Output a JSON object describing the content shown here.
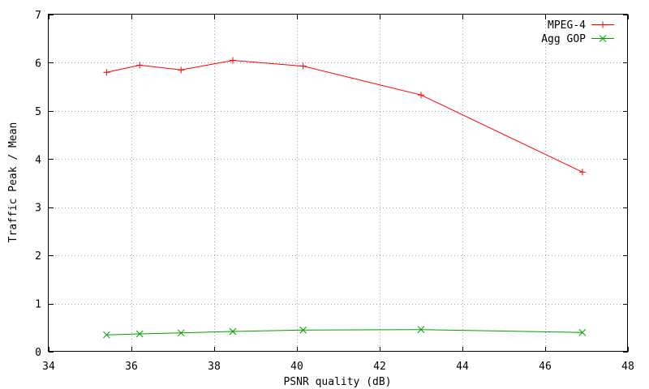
{
  "chart_data": {
    "type": "line",
    "xlabel": "PSNR quality (dB)",
    "ylabel": "Traffic Peak / Mean",
    "xlim": [
      34,
      48
    ],
    "ylim": [
      0,
      7
    ],
    "xticks": [
      34,
      36,
      38,
      40,
      42,
      44,
      46,
      48
    ],
    "yticks": [
      0,
      1,
      2,
      3,
      4,
      5,
      6,
      7
    ],
    "grid": true,
    "legend_position": "top-right",
    "series": [
      {
        "name": "MPEG-4",
        "color": "#ff0000",
        "marker": "plus",
        "x": [
          35.4,
          36.2,
          37.2,
          38.45,
          40.15,
          43.0,
          46.9
        ],
        "y": [
          5.8,
          5.95,
          5.85,
          6.05,
          5.93,
          5.33,
          3.73
        ]
      },
      {
        "name": "Agg GOP",
        "color": "#00a000",
        "marker": "cross",
        "x": [
          35.4,
          36.2,
          37.2,
          38.45,
          40.15,
          43.0,
          46.9
        ],
        "y": [
          0.35,
          0.37,
          0.39,
          0.42,
          0.45,
          0.46,
          0.4
        ]
      }
    ]
  }
}
